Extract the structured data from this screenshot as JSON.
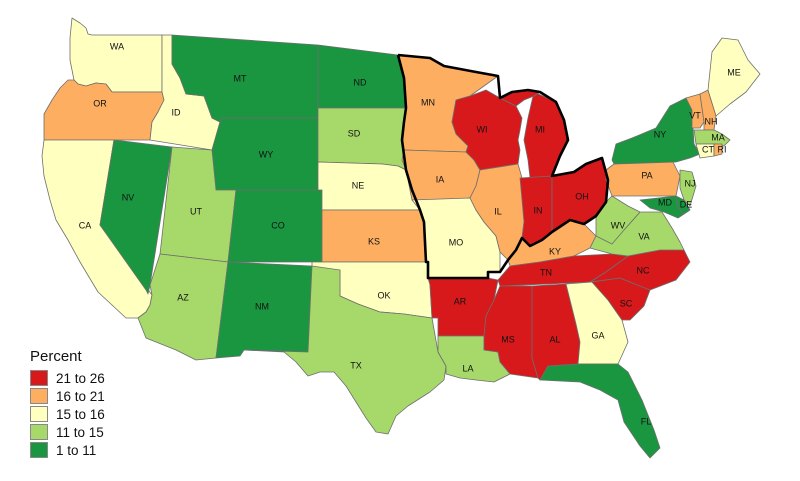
{
  "legend": {
    "title": "Percent",
    "items": [
      {
        "label": "21 to 26",
        "color": "#d7191c"
      },
      {
        "label": "16 to 21",
        "color": "#fdae61"
      },
      {
        "label": "15 to 16",
        "color": "#ffffbf"
      },
      {
        "label": "11 to 15",
        "color": "#a6d96a"
      },
      {
        "label": "1 to 11",
        "color": "#1a9641"
      }
    ]
  },
  "states": [
    {
      "abbr": "WA",
      "cls": 2
    },
    {
      "abbr": "OR",
      "cls": 1
    },
    {
      "abbr": "CA",
      "cls": 2
    },
    {
      "abbr": "ID",
      "cls": 2
    },
    {
      "abbr": "NV",
      "cls": 4
    },
    {
      "abbr": "MT",
      "cls": 4
    },
    {
      "abbr": "WY",
      "cls": 4
    },
    {
      "abbr": "UT",
      "cls": 3
    },
    {
      "abbr": "AZ",
      "cls": 3
    },
    {
      "abbr": "CO",
      "cls": 4
    },
    {
      "abbr": "NM",
      "cls": 4
    },
    {
      "abbr": "ND",
      "cls": 4
    },
    {
      "abbr": "SD",
      "cls": 3
    },
    {
      "abbr": "NE",
      "cls": 2
    },
    {
      "abbr": "KS",
      "cls": 1
    },
    {
      "abbr": "OK",
      "cls": 2
    },
    {
      "abbr": "TX",
      "cls": 3
    },
    {
      "abbr": "MN",
      "cls": 1
    },
    {
      "abbr": "IA",
      "cls": 1
    },
    {
      "abbr": "MO",
      "cls": 2
    },
    {
      "abbr": "AR",
      "cls": 0
    },
    {
      "abbr": "LA",
      "cls": 3
    },
    {
      "abbr": "WI",
      "cls": 0
    },
    {
      "abbr": "IL",
      "cls": 1
    },
    {
      "abbr": "MI",
      "cls": 0
    },
    {
      "abbr": "IN",
      "cls": 0
    },
    {
      "abbr": "OH",
      "cls": 0
    },
    {
      "abbr": "KY",
      "cls": 1
    },
    {
      "abbr": "TN",
      "cls": 0
    },
    {
      "abbr": "MS",
      "cls": 0
    },
    {
      "abbr": "AL",
      "cls": 0
    },
    {
      "abbr": "GA",
      "cls": 2
    },
    {
      "abbr": "FL",
      "cls": 4
    },
    {
      "abbr": "SC",
      "cls": 0
    },
    {
      "abbr": "NC",
      "cls": 0
    },
    {
      "abbr": "VA",
      "cls": 3
    },
    {
      "abbr": "WV",
      "cls": 3
    },
    {
      "abbr": "PA",
      "cls": 1
    },
    {
      "abbr": "NY",
      "cls": 4
    },
    {
      "abbr": "VT",
      "cls": 1
    },
    {
      "abbr": "NH",
      "cls": 1
    },
    {
      "abbr": "ME",
      "cls": 2
    },
    {
      "abbr": "MA",
      "cls": 3
    },
    {
      "abbr": "CT",
      "cls": 2
    },
    {
      "abbr": "RI",
      "cls": 1
    },
    {
      "abbr": "NJ",
      "cls": 3
    },
    {
      "abbr": "DE",
      "cls": 4
    },
    {
      "abbr": "MD",
      "cls": 4
    }
  ]
}
